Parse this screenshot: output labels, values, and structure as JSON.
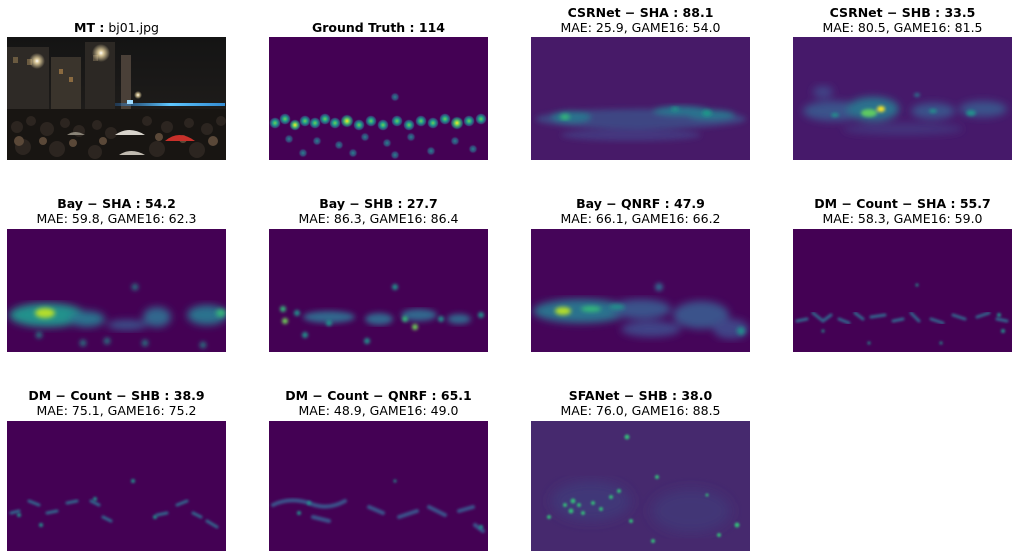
{
  "colors": {
    "viridis_bg": "#440154",
    "peak": "#fde725"
  },
  "panels": [
    {
      "title_bold": "MT :",
      "title_rest": " bj01.jpg",
      "subtitle": ""
    },
    {
      "title_bold": "Ground Truth : 114",
      "title_rest": "",
      "subtitle": ""
    },
    {
      "title_bold": "CSRNet − SHA : 88.1",
      "title_rest": "",
      "subtitle": "MAE: 25.9, GAME16: 54.0"
    },
    {
      "title_bold": "CSRNet − SHB : 33.5",
      "title_rest": "",
      "subtitle": "MAE: 80.5, GAME16: 81.5"
    },
    {
      "title_bold": "Bay − SHA : 54.2",
      "title_rest": "",
      "subtitle": "MAE: 59.8, GAME16: 62.3"
    },
    {
      "title_bold": "Bay − SHB : 27.7",
      "title_rest": "",
      "subtitle": "MAE: 86.3, GAME16: 86.4"
    },
    {
      "title_bold": "Bay − QNRF : 47.9",
      "title_rest": "",
      "subtitle": "MAE: 66.1, GAME16: 66.2"
    },
    {
      "title_bold": "DM − Count − SHA : 55.7",
      "title_rest": "",
      "subtitle": "MAE: 58.3, GAME16: 59.0"
    },
    {
      "title_bold": "DM − Count − SHB : 38.9",
      "title_rest": "",
      "subtitle": "MAE: 75.1, GAME16: 75.2"
    },
    {
      "title_bold": "DM − Count − QNRF : 65.1",
      "title_rest": "",
      "subtitle": "MAE: 48.9, GAME16: 49.0"
    },
    {
      "title_bold": "SFANet − SHB : 38.0",
      "title_rest": "",
      "subtitle": "MAE: 76.0, GAME16: 88.5"
    }
  ]
}
